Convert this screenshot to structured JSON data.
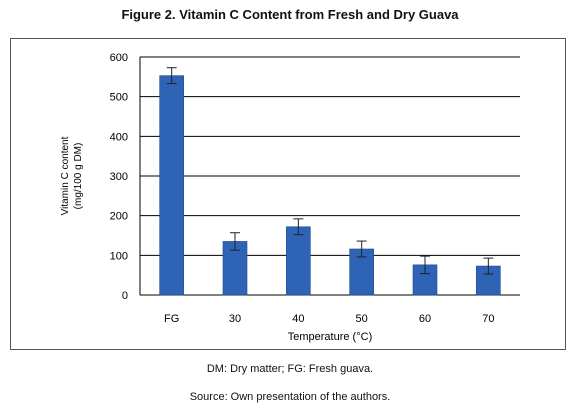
{
  "figure": {
    "title": "Figure 2. Vitamin C Content from Fresh and Dry Guava",
    "note": "DM: Dry matter; FG: Fresh guava.",
    "source": "Source: Own presentation of the authors."
  },
  "colors": {
    "bar": "#2f63b6",
    "bar_edge": "#1f4a8f",
    "grid": "#000000",
    "error": "#222222"
  },
  "chart_data": {
    "type": "bar",
    "title": "Figure 2. Vitamin C Content from Fresh and Dry Guava",
    "xlabel": "Temperature (°C)",
    "ylabel_lines": [
      "Vitamin C content",
      "(mg/100 g DM)"
    ],
    "categories": [
      "FG",
      "30",
      "40",
      "50",
      "60",
      "70"
    ],
    "values": [
      553,
      135,
      172,
      116,
      76,
      73
    ],
    "error": [
      20,
      22,
      20,
      20,
      22,
      20
    ],
    "ylim": [
      0,
      600
    ],
    "yticks": [
      0,
      100,
      200,
      300,
      400,
      500,
      600
    ],
    "grid": true,
    "legend": "none"
  }
}
